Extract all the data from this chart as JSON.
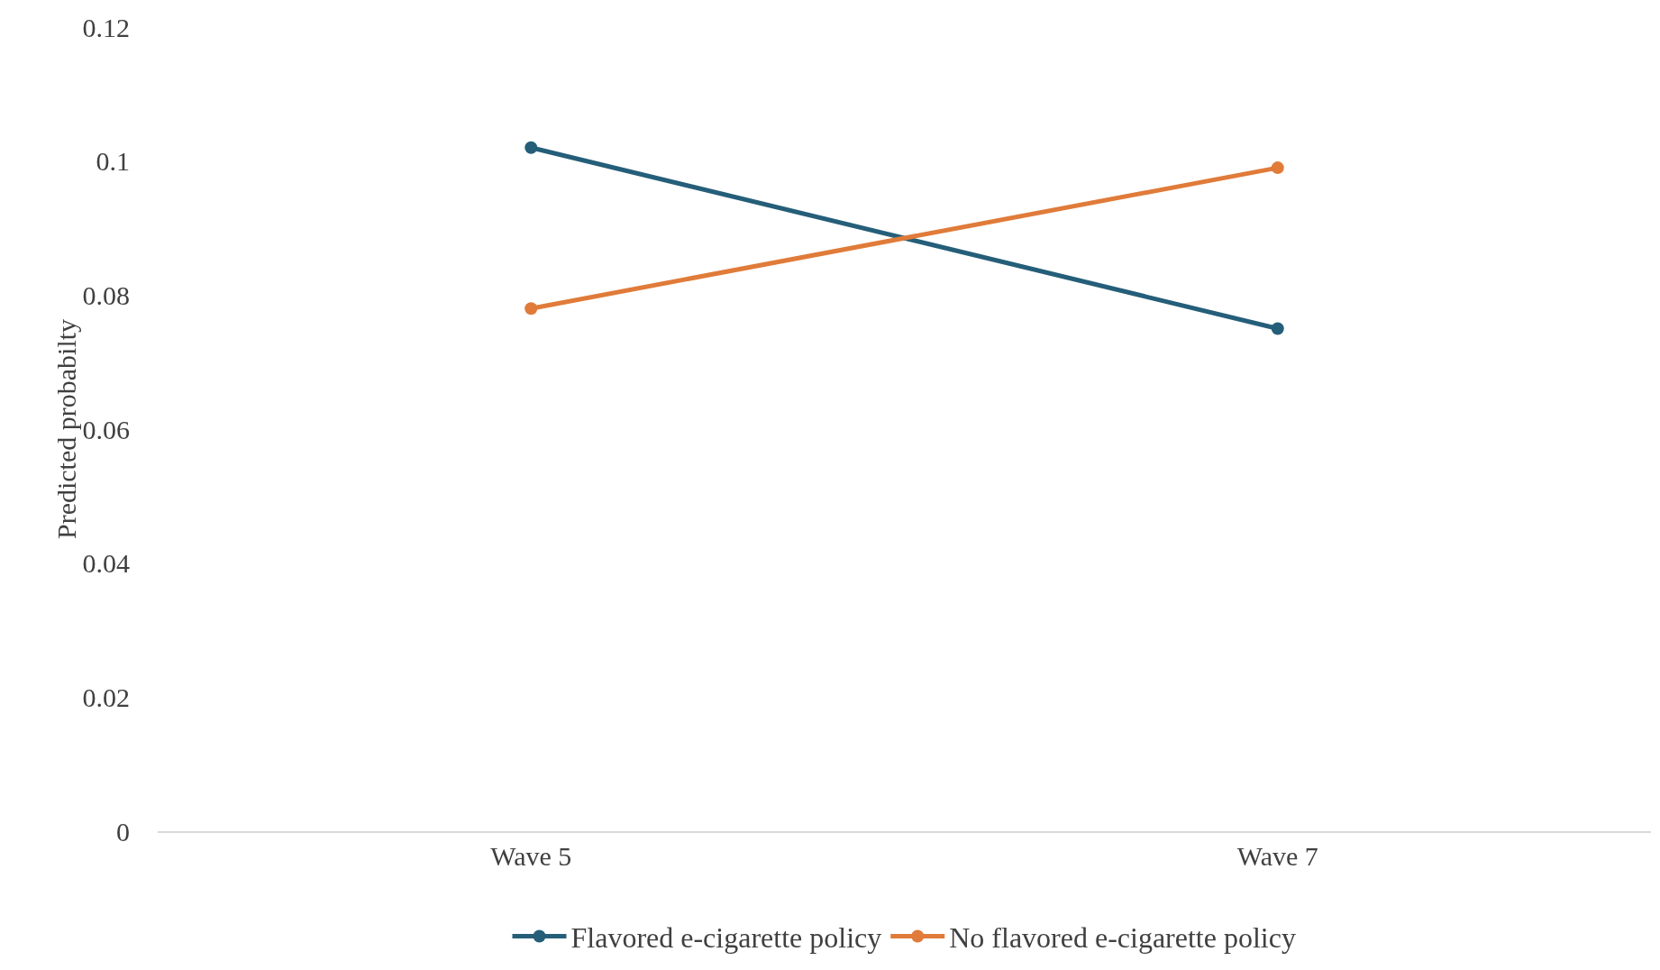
{
  "chart_data": {
    "type": "line",
    "ylabel": "Predicted probabilty",
    "categories": [
      "Wave 5",
      "Wave 7"
    ],
    "series": [
      {
        "name": "Flavored e-cigarette policy",
        "color": "#255e79",
        "values": [
          0.102,
          0.075
        ]
      },
      {
        "name": "No flavored e-cigarette policy",
        "color": "#e07b39",
        "values": [
          0.078,
          0.099
        ]
      }
    ],
    "ylim": [
      0,
      0.12
    ],
    "yticks": [
      0,
      0.02,
      0.04,
      0.06,
      0.08,
      0.1,
      0.12
    ],
    "grid": false,
    "legend": "bottom",
    "marker": "circle",
    "line_style": "solid"
  }
}
